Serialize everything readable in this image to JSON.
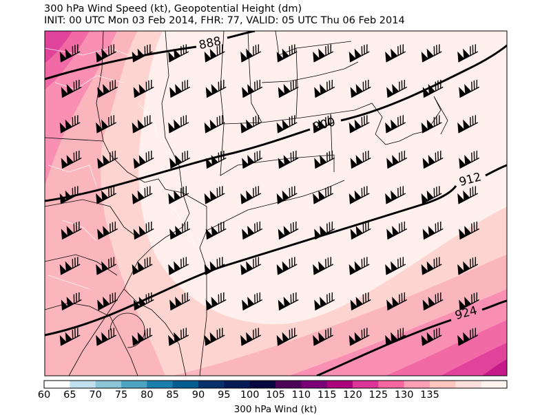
{
  "title_line1": "300 hPa Wind Speed (kt), Geopotential Height (dm)",
  "title_line2": "INIT: 00 UTC Mon 03 Feb 2014, FHR: 77, VALID: 05 UTC Thu 06 Feb 2014",
  "contour_labels": [
    "888",
    "900",
    "912",
    "924"
  ],
  "colorbar": {
    "label": "300 hPa Wind (kt)",
    "ticks": [
      "60",
      "65",
      "70",
      "75",
      "80",
      "85",
      "90",
      "95",
      "100",
      "105",
      "110",
      "115",
      "120",
      "125",
      "130",
      "135"
    ],
    "colors": [
      "#ffffff",
      "#bfe0ec",
      "#8ac5d8",
      "#4fa3c3",
      "#1a7fac",
      "#065d91",
      "#08306b",
      "#061a55",
      "#08063f",
      "#4c0057",
      "#7a0177",
      "#ae017e",
      "#dd3497",
      "#f768a1",
      "#fa9fb5",
      "#fcc5c0",
      "#fde0dd",
      "#fff3f1"
    ]
  },
  "map_colors": {
    "band_lightest": "#fff0ee",
    "band_light": "#fdd4d0",
    "band_mid": "#fbb6bd",
    "band_pink": "#f98fb2",
    "band_hot": "#f26aa5",
    "band_deep": "#e0449a",
    "band_darkest": "#c51b8a"
  },
  "barb_rows": 9,
  "barb_cols": 12
}
